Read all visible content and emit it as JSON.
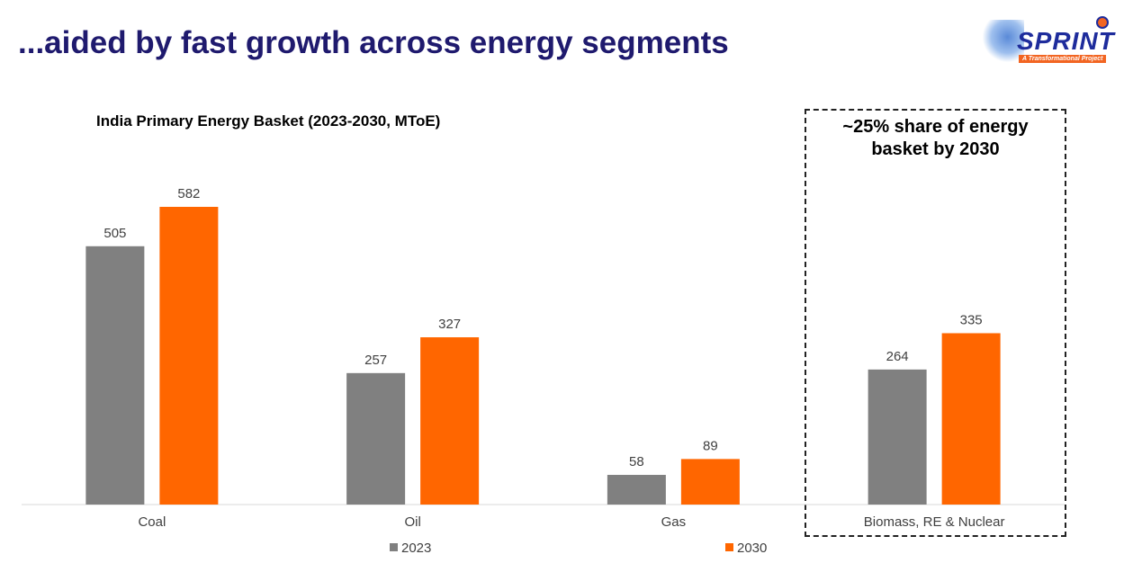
{
  "title": "...aided by fast growth across energy segments",
  "logo": {
    "word": "SPRINT",
    "tagline": "A Transformational Project",
    "badge": "IndianOil"
  },
  "callout": {
    "line1": "~25% share of energy",
    "line2": "basket by 2030"
  },
  "colors": {
    "s2023": "#808080",
    "s2030": "#ff6600",
    "title": "#1f1a6e"
  },
  "chart_data": {
    "type": "bar",
    "title": "India Primary Energy Basket (2023-2030, MToE)",
    "categories": [
      "Coal",
      "Oil",
      "Gas",
      "Biomass, RE & Nuclear"
    ],
    "series": [
      {
        "name": "2023",
        "values": [
          505,
          257,
          58,
          264
        ]
      },
      {
        "name": "2030",
        "values": [
          582,
          327,
          89,
          335
        ]
      }
    ],
    "xlabel": "",
    "ylabel": "",
    "ylim": [
      0,
      582
    ],
    "grid": false,
    "legend": "bottom"
  }
}
